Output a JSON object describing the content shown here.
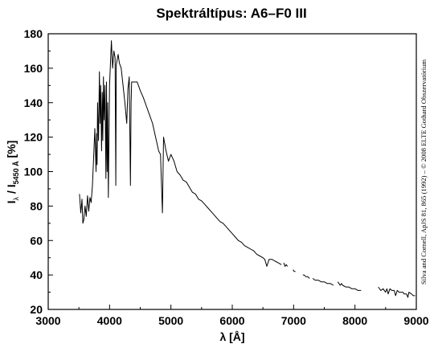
{
  "chart_data": {
    "type": "line",
    "title": "Spektráltípus: A6–F0 III",
    "xlabel": "λ [Å]",
    "ylabel": {
      "main": "I",
      "sub1": "λ",
      "sep": " / I",
      "sub2": "5450 Å",
      "unit": " [%]"
    },
    "credit": "Silva and Cornell, ApJS 81, 865 (1992) – © 2008 ELTE Gothard Obszervatórium",
    "xlim": [
      3000,
      9000
    ],
    "ylim": [
      20,
      180
    ],
    "xticks": [
      3000,
      4000,
      5000,
      6000,
      7000,
      8000,
      9000
    ],
    "yticks": [
      20,
      40,
      60,
      80,
      100,
      120,
      140,
      160,
      180
    ],
    "grid": false,
    "legend": "none",
    "line_color": "#000000",
    "series": [
      {
        "x": [
          3510,
          3530,
          3550,
          3565,
          3580,
          3600,
          3620,
          3640,
          3660,
          3680,
          3700,
          3720,
          3740,
          3760,
          3780,
          3790,
          3797,
          3805,
          3820,
          3835,
          3845,
          3855,
          3870,
          3880,
          3889,
          3900,
          3910,
          3925,
          3940,
          3950,
          3960,
          3970,
          3980,
          4000,
          4030,
          4050,
          4070,
          4090,
          4102,
          4110,
          4140,
          4160,
          4190,
          4220,
          4250,
          4280,
          4300,
          4320,
          4340,
          4350,
          4360,
          4400,
          4450,
          4500,
          4550,
          4600,
          4650,
          4700,
          4750,
          4800,
          4830,
          4861,
          4880,
          4920,
          4960,
          5000,
          5050,
          5100,
          5150,
          5200,
          5250,
          5300,
          5350,
          5400,
          5450,
          5500,
          5550,
          5600,
          5650,
          5700,
          5750,
          5800,
          5850,
          5900,
          5950,
          6000,
          6050,
          6100,
          6150,
          6200,
          6250,
          6300,
          6350,
          6400,
          6450,
          6500,
          6530,
          6563,
          6600,
          6650,
          6700,
          6750,
          6800
        ],
        "y": [
          87,
          76,
          84,
          70,
          72,
          80,
          74,
          86,
          77,
          85,
          82,
          92,
          108,
          125,
          100,
          122,
          104,
          140,
          118,
          158,
          128,
          150,
          112,
          146,
          118,
          155,
          130,
          150,
          96,
          152,
          100,
          140,
          85,
          150,
          176,
          160,
          170,
          166,
          92,
          162,
          168,
          163,
          160,
          150,
          140,
          128,
          148,
          155,
          92,
          140,
          152,
          152,
          152,
          147,
          143,
          138,
          133,
          128,
          120,
          112,
          110,
          76,
          120,
          112,
          106,
          110,
          106,
          100,
          98,
          95,
          94,
          91,
          88,
          87,
          84,
          83,
          81,
          79,
          77,
          75,
          73,
          71,
          70,
          68,
          66,
          64,
          62,
          60,
          59,
          57,
          56,
          55,
          54,
          52,
          51,
          50,
          49,
          45,
          49,
          49,
          48,
          47,
          46
        ]
      },
      {
        "x": [
          6840,
          6860,
          6880,
          6900
        ],
        "y": [
          47,
          45,
          46,
          45
        ]
      },
      {
        "x": [
          6990,
          7010,
          7030
        ],
        "y": [
          43,
          42,
          42
        ]
      },
      {
        "x": [
          7150,
          7170,
          7200,
          7230,
          7260
        ],
        "y": [
          40,
          40,
          39,
          39,
          38
        ]
      },
      {
        "x": [
          7310,
          7350,
          7400,
          7450,
          7500,
          7550,
          7600,
          7650
        ],
        "y": [
          38,
          37,
          37,
          36,
          36,
          35,
          35,
          34
        ]
      },
      {
        "x": [
          7720,
          7740,
          7760,
          7780,
          7800,
          7850,
          7900,
          7950,
          8000,
          8050,
          8100
        ],
        "y": [
          36,
          35,
          34,
          35,
          34,
          33,
          33,
          32,
          32,
          31,
          31
        ]
      },
      {
        "x": [
          8380,
          8420,
          8460,
          8498,
          8520,
          8542,
          8570,
          8600,
          8640,
          8662,
          8690,
          8720,
          8750,
          8780,
          8800,
          8840,
          8862,
          8880,
          8920,
          8950,
          8980
        ],
        "y": [
          33,
          31,
          32,
          30,
          32,
          29,
          32,
          31,
          31,
          28,
          31,
          30,
          30,
          30,
          29,
          29,
          27,
          30,
          29,
          28,
          28
        ]
      }
    ]
  }
}
